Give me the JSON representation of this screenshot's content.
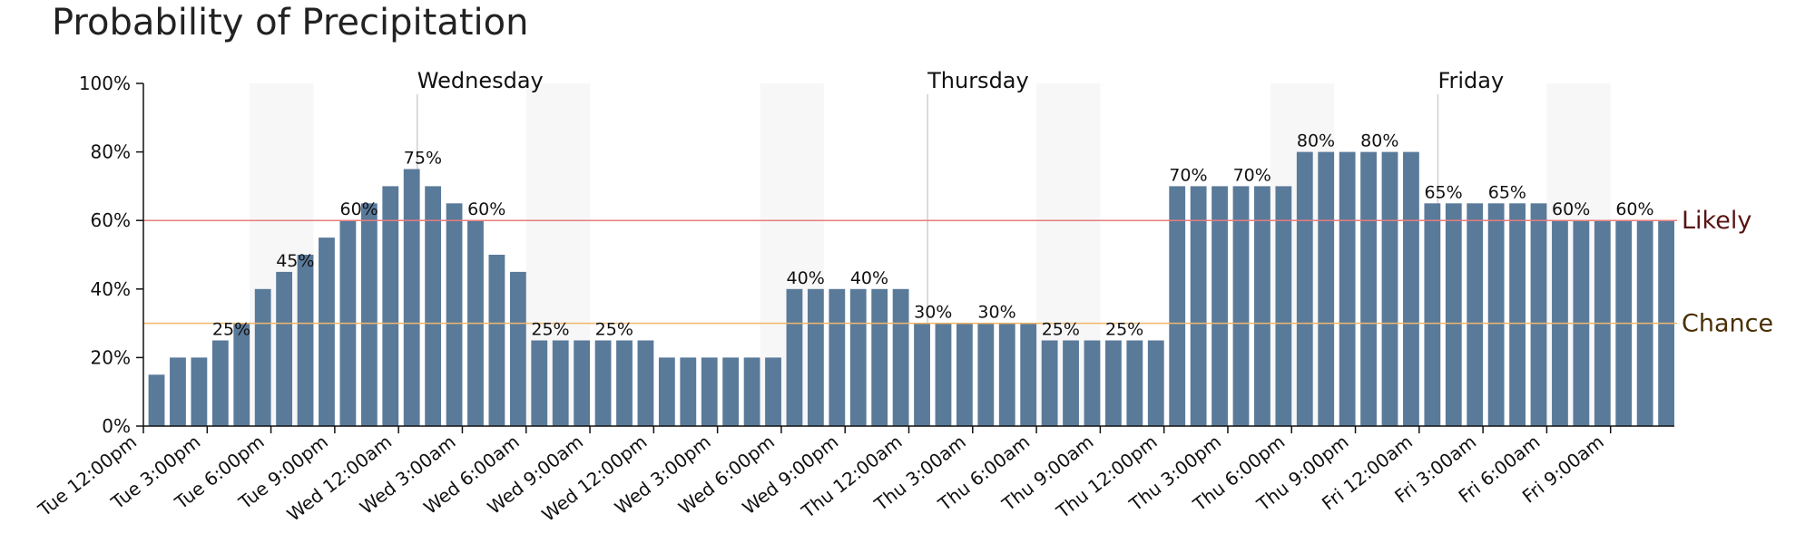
{
  "chart_data": {
    "type": "bar",
    "title": "Probability of Precipitation",
    "xlabel": "",
    "ylabel": "",
    "ylim": [
      0,
      100
    ],
    "y_ticks": [
      "0%",
      "20%",
      "40%",
      "60%",
      "80%",
      "100%"
    ],
    "x_ticks": [
      "Tue 12:00pm",
      "Tue 3:00pm",
      "Tue 6:00pm",
      "Tue 9:00pm",
      "Wed 12:00am",
      "Wed 3:00am",
      "Wed 6:00am",
      "Wed 9:00am",
      "Wed 12:00pm",
      "Wed 3:00pm",
      "Wed 6:00pm",
      "Wed 9:00pm",
      "Thu 12:00am",
      "Thu 3:00am",
      "Thu 6:00am",
      "Thu 9:00am",
      "Thu 12:00pm",
      "Thu 3:00pm",
      "Thu 6:00pm",
      "Thu 9:00pm",
      "Fri 12:00am",
      "Fri 3:00am",
      "Fri 6:00am",
      "Fri 9:00am"
    ],
    "x_start": "Tue 12:00pm",
    "interval_hours": 1,
    "values": [
      15,
      20,
      20,
      25,
      30,
      40,
      45,
      50,
      55,
      60,
      65,
      70,
      75,
      70,
      65,
      60,
      50,
      45,
      25,
      25,
      25,
      25,
      25,
      25,
      20,
      20,
      20,
      20,
      20,
      20,
      40,
      40,
      40,
      40,
      40,
      40,
      30,
      30,
      30,
      30,
      30,
      30,
      25,
      25,
      25,
      25,
      25,
      25,
      70,
      70,
      70,
      70,
      70,
      70,
      80,
      80,
      80,
      80,
      80,
      80,
      65,
      65,
      65,
      65,
      65,
      65,
      60,
      60,
      60,
      60,
      60,
      60
    ],
    "data_labels": [
      {
        "hour": 3,
        "text": "25%"
      },
      {
        "hour": 6,
        "text": "45%"
      },
      {
        "hour": 9,
        "text": "60%"
      },
      {
        "hour": 12,
        "text": "75%"
      },
      {
        "hour": 15,
        "text": "60%"
      },
      {
        "hour": 18,
        "text": "25%"
      },
      {
        "hour": 21,
        "text": "25%"
      },
      {
        "hour": 30,
        "text": "40%"
      },
      {
        "hour": 33,
        "text": "40%"
      },
      {
        "hour": 36,
        "text": "30%"
      },
      {
        "hour": 39,
        "text": "30%"
      },
      {
        "hour": 42,
        "text": "25%"
      },
      {
        "hour": 45,
        "text": "25%"
      },
      {
        "hour": 48,
        "text": "70%"
      },
      {
        "hour": 51,
        "text": "70%"
      },
      {
        "hour": 54,
        "text": "80%"
      },
      {
        "hour": 57,
        "text": "80%"
      },
      {
        "hour": 60,
        "text": "65%"
      },
      {
        "hour": 63,
        "text": "65%"
      },
      {
        "hour": 66,
        "text": "60%"
      },
      {
        "hour": 69,
        "text": "60%"
      }
    ],
    "day_markers": [
      {
        "label": "Wednesday",
        "hour": 12
      },
      {
        "label": "Thursday",
        "hour": 36
      },
      {
        "label": "Friday",
        "hour": 60
      }
    ],
    "night_bands_hours": [
      [
        5,
        8
      ],
      [
        18,
        21
      ],
      [
        29,
        32
      ],
      [
        42,
        45
      ],
      [
        53,
        56
      ],
      [
        66,
        69
      ]
    ],
    "reference_lines": [
      {
        "label": "Likely",
        "value": 60,
        "color": "#e87c7c",
        "text_color": "#5a1414"
      },
      {
        "label": "Chance",
        "value": 30,
        "color": "#f0b76a",
        "text_color": "#4a3005"
      }
    ],
    "bar_color": "#5a7a9a",
    "band_color": "#f7f7f7",
    "grid": false
  }
}
